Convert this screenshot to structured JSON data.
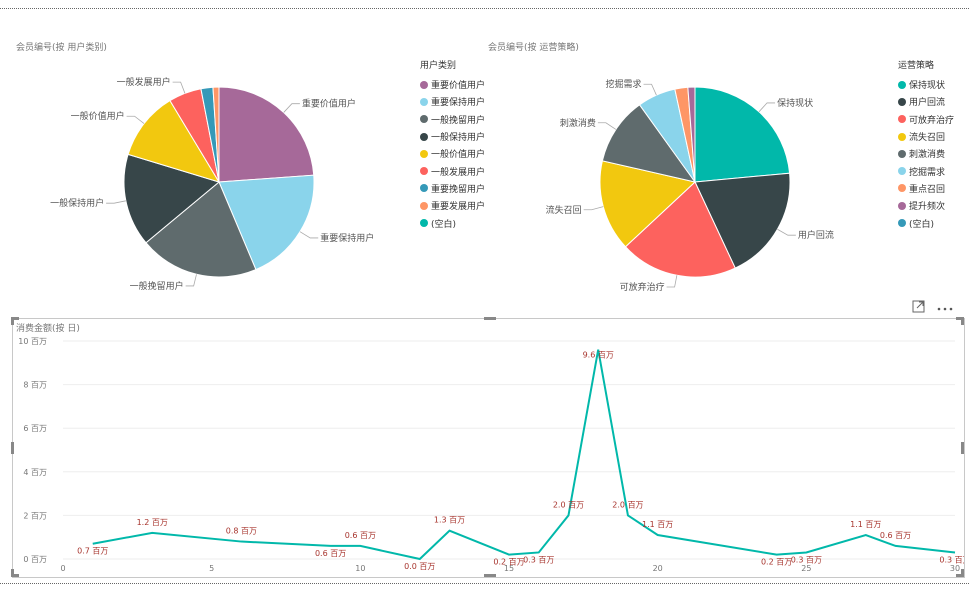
{
  "pie1": {
    "title": "会员编号(按 用户类别)",
    "legend_title": "用户类别",
    "chart_data": {
      "type": "pie",
      "title": "会员编号(按 用户类别)",
      "legend_title": "用户类别",
      "slices": [
        {
          "label": "重要价值用户",
          "value": 23.5,
          "color": "#A66999"
        },
        {
          "label": "重要保持用户",
          "value": 19.5,
          "color": "#8AD4EB"
        },
        {
          "label": "一般挽留用户",
          "value": 20.0,
          "color": "#5F6B6D"
        },
        {
          "label": "一般保持用户",
          "value": 15.5,
          "color": "#374649"
        },
        {
          "label": "一般价值用户",
          "value": 11.5,
          "color": "#F2C80F"
        },
        {
          "label": "一般发展用户",
          "value": 5.5,
          "color": "#FD625E"
        },
        {
          "label": "重要挽留用户",
          "value": 2.0,
          "color": "#3599B8"
        },
        {
          "label": "重要发展用户",
          "value": 1.0,
          "color": "#FE9666"
        },
        {
          "label": "(空白)",
          "value": 0.0,
          "color": "#01B8AA"
        }
      ]
    }
  },
  "pie2": {
    "title": "会员编号(按 运营策略)",
    "legend_title": "运营策略",
    "chart_data": {
      "type": "pie",
      "title": "会员编号(按 运营策略)",
      "legend_title": "运营策略",
      "slices": [
        {
          "label": "保持现状",
          "value": 23.5,
          "color": "#01B8AA"
        },
        {
          "label": "用户回流",
          "value": 19.5,
          "color": "#374649"
        },
        {
          "label": "可放弃治疗",
          "value": 20.0,
          "color": "#FD625E"
        },
        {
          "label": "流失召回",
          "value": 15.5,
          "color": "#F2C80F"
        },
        {
          "label": "刺激消费",
          "value": 11.5,
          "color": "#5F6B6D"
        },
        {
          "label": "挖掘需求",
          "value": 6.5,
          "color": "#8AD4EB"
        },
        {
          "label": "重点召回",
          "value": 2.2,
          "color": "#FE9666"
        },
        {
          "label": "提升频次",
          "value": 1.2,
          "color": "#A66999"
        },
        {
          "label": "(空白)",
          "value": 0.0,
          "color": "#3599B8"
        }
      ]
    }
  },
  "line": {
    "title": "消费金额(按 日)",
    "chart_data": {
      "type": "line",
      "title": "消费金额(按 日)",
      "x": [
        1,
        3,
        6,
        9,
        10,
        12,
        13,
        15,
        16,
        17,
        18,
        19,
        20,
        24,
        25,
        27,
        28,
        30
      ],
      "values": [
        0.7,
        1.2,
        0.8,
        0.6,
        0.6,
        0.0,
        1.3,
        0.2,
        0.3,
        2.0,
        9.6,
        2.0,
        1.1,
        0.2,
        0.3,
        1.1,
        0.6,
        0.3
      ],
      "data_labels": [
        "0.7 百万",
        "1.2 百万",
        "0.8 百万",
        "0.6 百万",
        "0.6 百万",
        "0.0 百万",
        "1.3 百万",
        "0.2 百万",
        "0.3 百万",
        "2.0 百万",
        "9.6 百万",
        "2.0 百万",
        "1.1 百万",
        "0.2 百万",
        "0.3 百万",
        "1.1 百万",
        "0.6 百万",
        "0.3 百万"
      ],
      "xticks": [
        "0",
        "5",
        "10",
        "15",
        "20",
        "25",
        "30"
      ],
      "yticks": [
        "0 百万",
        "2 百万",
        "4 百万",
        "6 百万",
        "8 百万",
        "10 百万"
      ],
      "xlim": [
        0,
        30
      ],
      "ylim": [
        0,
        10
      ],
      "grid": true,
      "color": "#01B8AA",
      "label_color": "#A7342D"
    }
  },
  "icons": {
    "focus": "focus-mode-icon",
    "more": "more-options-icon"
  }
}
